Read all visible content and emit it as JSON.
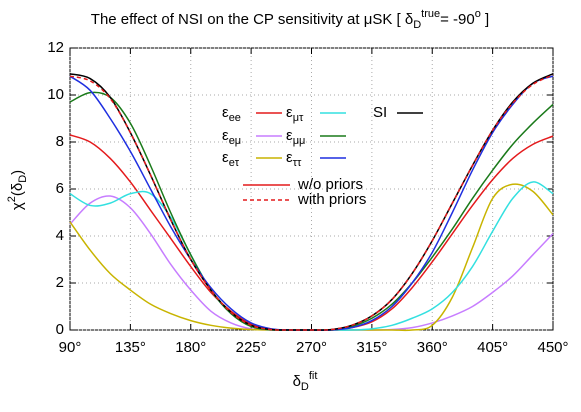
{
  "chart_data": {
    "type": "line",
    "title": [
      {
        "text": "The effect of NSI on the CP sensitivity at μSK [ δ",
        "shift": "base"
      },
      {
        "text": "D",
        "shift": "sub"
      },
      {
        "text": "true",
        "shift": "super"
      },
      {
        "text": "= -90",
        "shift": "base"
      },
      {
        "text": "o",
        "shift": "super"
      },
      {
        "text": " ]",
        "shift": "base"
      }
    ],
    "xlabel": [
      {
        "text": "δ",
        "shift": "base"
      },
      {
        "text": "D",
        "shift": "sub"
      },
      {
        "text": "fit",
        "shift": "super"
      }
    ],
    "ylabel": [
      {
        "text": "χ",
        "shift": "base"
      },
      {
        "text": "2",
        "shift": "super"
      },
      {
        "text": "(δ",
        "shift": "base"
      },
      {
        "text": "D",
        "shift": "sub"
      },
      {
        "text": ")",
        "shift": "base"
      }
    ],
    "x": [
      90,
      105,
      120,
      135,
      150,
      165,
      180,
      195,
      210,
      225,
      240,
      255,
      270,
      285,
      300,
      315,
      330,
      345,
      360,
      375,
      390,
      405,
      420,
      435,
      450
    ],
    "xlim": [
      90,
      450
    ],
    "xticks": [
      {
        "value": 90,
        "label": "90°"
      },
      {
        "value": 135,
        "label": "135°"
      },
      {
        "value": 180,
        "label": "180°"
      },
      {
        "value": 225,
        "label": "225°"
      },
      {
        "value": 270,
        "label": "270°"
      },
      {
        "value": 315,
        "label": "315°"
      },
      {
        "value": 360,
        "label": "360°"
      },
      {
        "value": 405,
        "label": "405°"
      },
      {
        "value": 450,
        "label": "450°"
      }
    ],
    "ylim": [
      0,
      12
    ],
    "yticks": [
      0,
      2,
      4,
      6,
      8,
      10,
      12
    ],
    "grid": true,
    "series": [
      {
        "name": "εee",
        "color": "#e41a1c",
        "values": [
          8.3,
          8.0,
          7.3,
          6.3,
          5.1,
          3.9,
          2.7,
          1.6,
          0.8,
          0.25,
          0.03,
          0,
          0,
          0,
          0.1,
          0.35,
          0.9,
          1.8,
          2.9,
          4.1,
          5.3,
          6.4,
          7.3,
          7.9,
          8.25
        ]
      },
      {
        "name": "εeμ",
        "color": "#c77dff",
        "values": [
          4.5,
          5.4,
          5.7,
          5.2,
          4.1,
          2.8,
          1.7,
          0.8,
          0.3,
          0.05,
          0,
          0,
          0,
          0,
          0,
          0,
          0.02,
          0.1,
          0.3,
          0.6,
          1.0,
          1.6,
          2.3,
          3.2,
          4.1
        ]
      },
      {
        "name": "εeτ",
        "color": "#c8b400",
        "values": [
          4.6,
          3.4,
          2.4,
          1.7,
          1.1,
          0.7,
          0.4,
          0.2,
          0.08,
          0.02,
          0,
          0,
          0,
          0,
          0,
          0,
          0,
          0,
          0.2,
          1.4,
          3.5,
          5.6,
          6.2,
          5.9,
          4.9
        ]
      },
      {
        "name": "εμτ",
        "color": "#33e0e0",
        "values": [
          5.8,
          5.3,
          5.4,
          5.8,
          5.8,
          4.8,
          3.2,
          1.7,
          0.7,
          0.15,
          0.01,
          0,
          0,
          0,
          0,
          0.05,
          0.2,
          0.5,
          0.9,
          1.6,
          2.7,
          4.2,
          5.6,
          6.3,
          5.8
        ]
      },
      {
        "name": "εμμ",
        "color": "#1a7a1a",
        "values": [
          9.7,
          10.1,
          9.9,
          8.8,
          7.0,
          5.0,
          3.2,
          1.7,
          0.7,
          0.15,
          0.01,
          0,
          0,
          0,
          0.15,
          0.5,
          1.1,
          2.0,
          3.1,
          4.3,
          5.6,
          6.8,
          7.9,
          8.8,
          9.6
        ]
      },
      {
        "name": "εττ",
        "color": "#1f2fe0",
        "values": [
          10.8,
          10.2,
          9.0,
          7.6,
          6.0,
          4.4,
          3.0,
          1.8,
          0.9,
          0.3,
          0.05,
          0,
          0,
          0,
          0.1,
          0.4,
          1.0,
          2.0,
          3.3,
          5.0,
          6.8,
          8.4,
          9.6,
          10.5,
          10.8
        ]
      },
      {
        "name": "SI",
        "color": "#000000",
        "values": [
          10.9,
          10.7,
          9.9,
          8.4,
          6.6,
          4.7,
          3.0,
          1.7,
          0.75,
          0.2,
          0.02,
          0,
          0,
          0.02,
          0.2,
          0.6,
          1.3,
          2.4,
          3.8,
          5.4,
          7.0,
          8.5,
          9.7,
          10.5,
          10.9
        ]
      },
      {
        "name": "with priors",
        "color": "#e41a1c",
        "dashed": true,
        "values": [
          10.8,
          10.6,
          9.85,
          8.4,
          6.6,
          4.7,
          3.0,
          1.7,
          0.75,
          0.2,
          0.02,
          0,
          0,
          0.02,
          0.2,
          0.6,
          1.3,
          2.4,
          3.8,
          5.4,
          7.0,
          8.5,
          9.65,
          10.45,
          10.85
        ]
      }
    ],
    "solid_label": "w/o priors"
  }
}
